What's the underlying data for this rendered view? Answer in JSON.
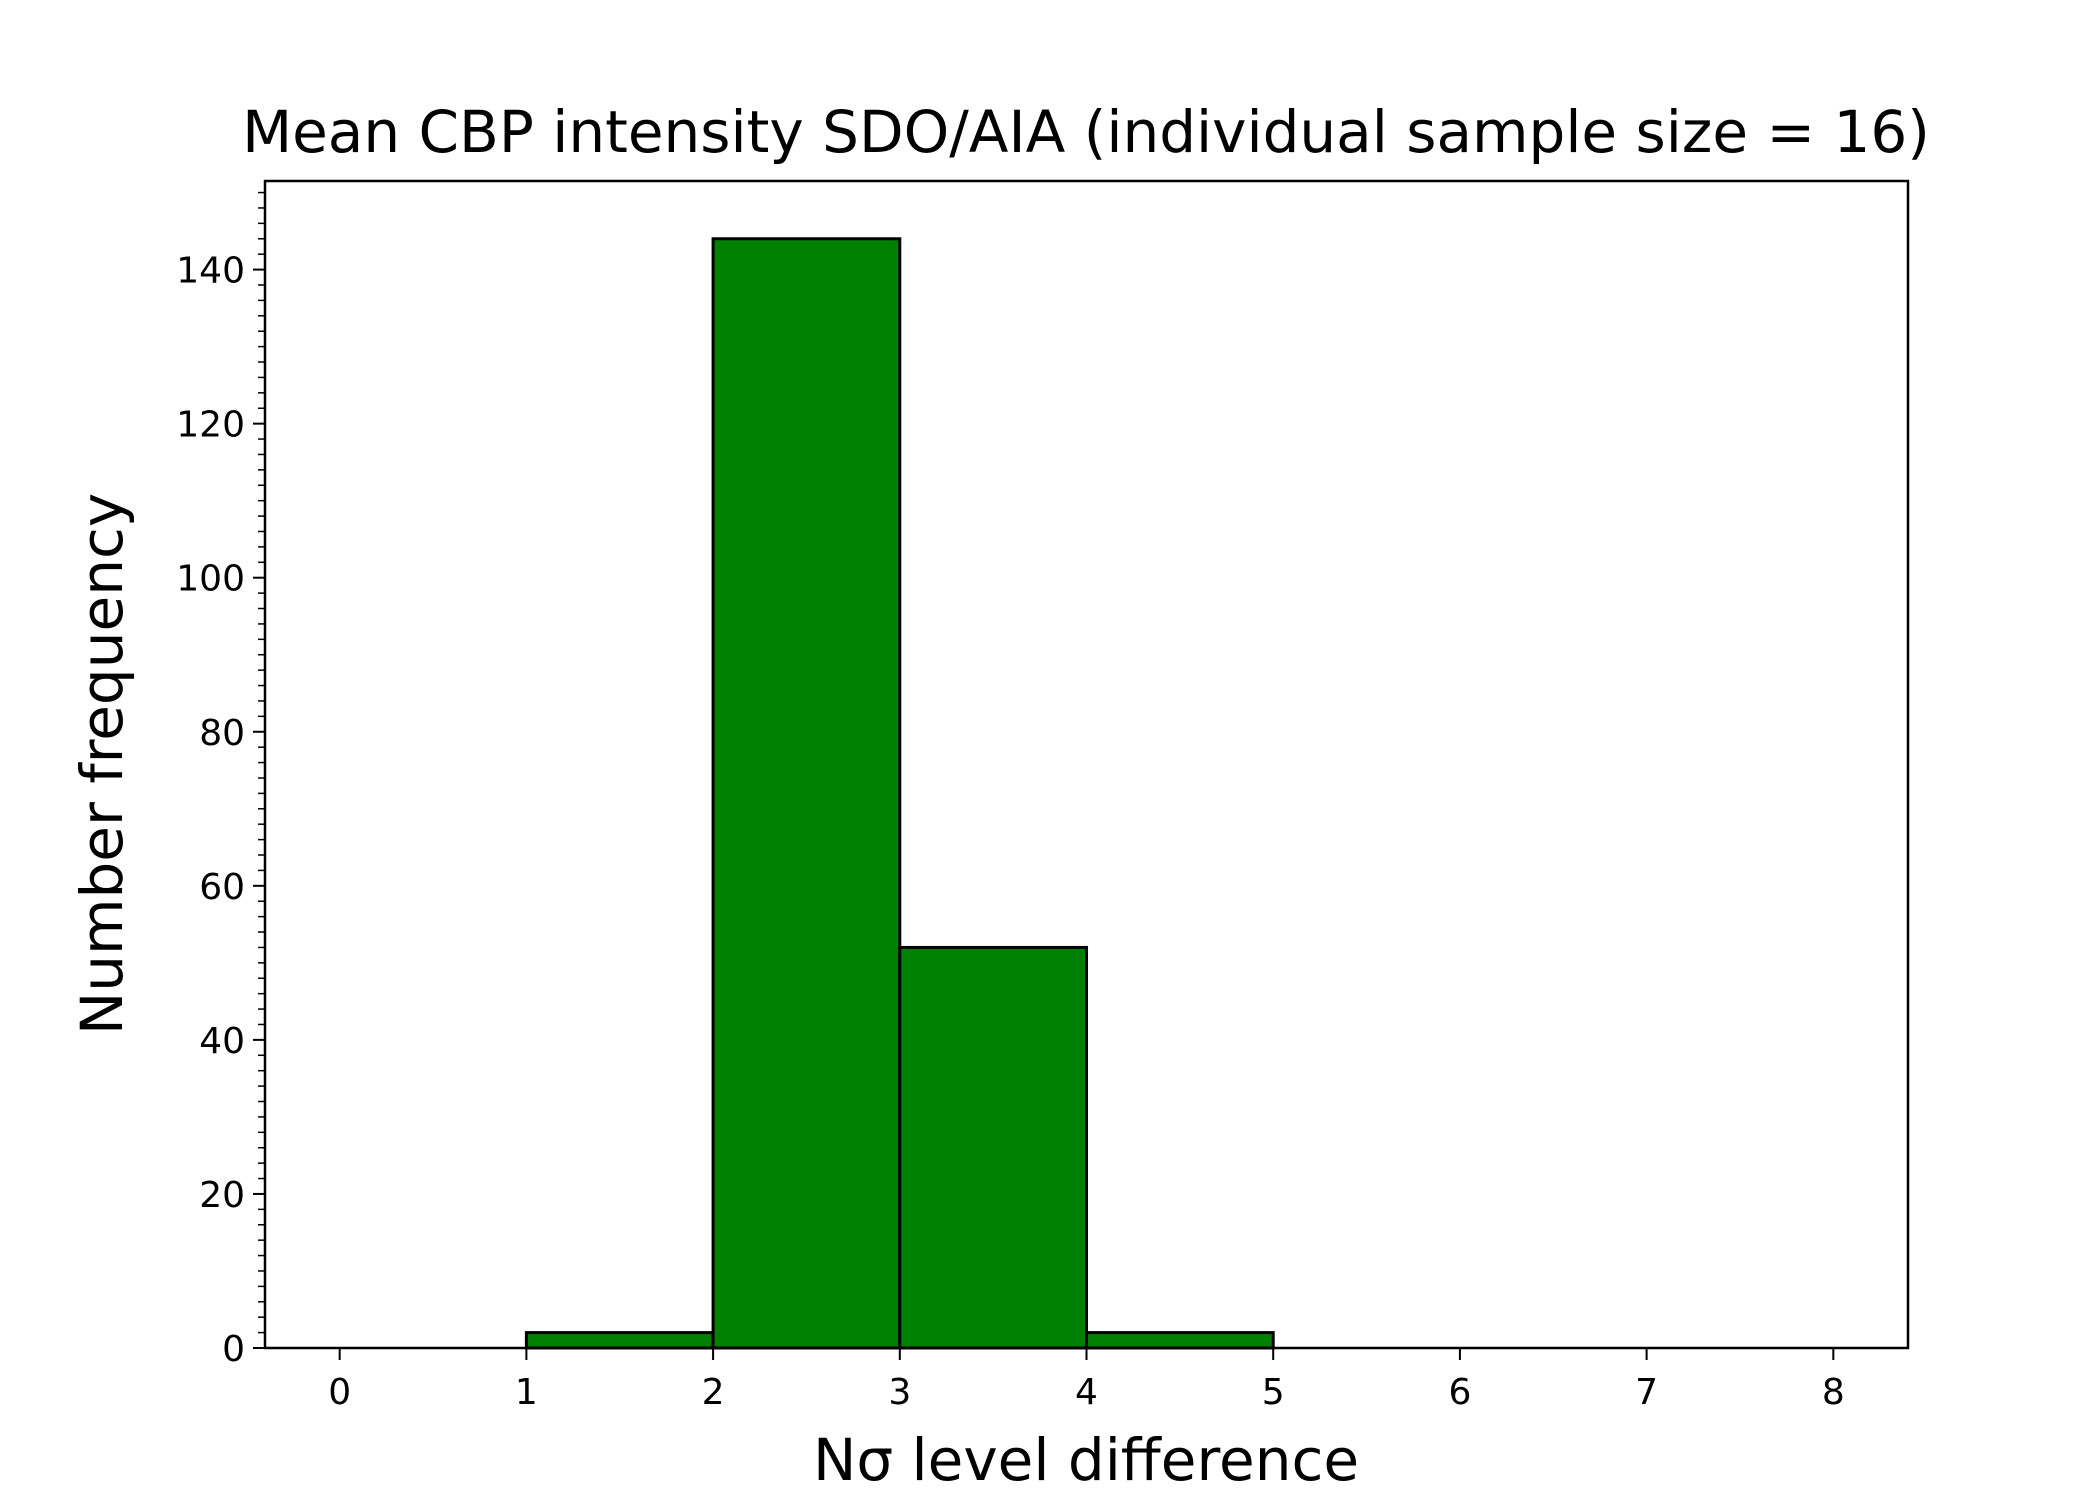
{
  "chart_data": {
    "type": "bar",
    "title": "Mean CBP intensity SDO/AIA (individual sample size = 16)",
    "xlabel": "Nσ level difference",
    "ylabel": "Number frequency",
    "bin_edges": [
      0,
      1,
      2,
      3,
      4,
      5,
      6,
      7,
      8
    ],
    "values": [
      0,
      2,
      144,
      52,
      2,
      0,
      0,
      0
    ],
    "xlim": [
      -0.4,
      8.4
    ],
    "ylim": [
      0,
      151.5
    ],
    "x_ticks": [
      0,
      1,
      2,
      3,
      4,
      5,
      6,
      7,
      8
    ],
    "y_ticks": [
      0,
      20,
      40,
      60,
      80,
      100,
      120,
      140
    ],
    "y_minor_step": 2,
    "grid": false,
    "bar_color": "#008000",
    "edge_color": "#000000"
  }
}
